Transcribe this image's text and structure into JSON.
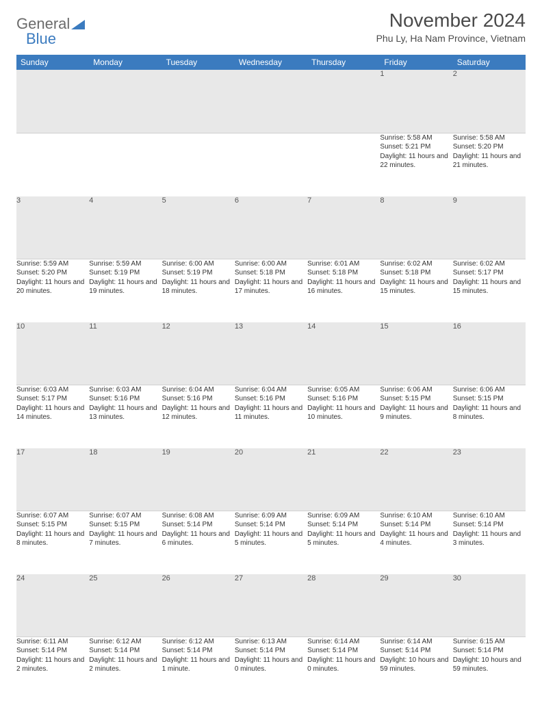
{
  "brand": {
    "general": "General",
    "blue": "Blue"
  },
  "title": "November 2024",
  "location": "Phu Ly, Ha Nam Province, Vietnam",
  "colors": {
    "header_bg": "#3b7bbf",
    "header_fg": "#ffffff",
    "daynum_bg": "#e8e8e8",
    "text": "#333333",
    "background": "#ffffff"
  },
  "typography": {
    "title_fontsize": 28,
    "location_fontsize": 14,
    "dayhead_fontsize": 12,
    "cell_fontsize": 10
  },
  "day_headers": [
    "Sunday",
    "Monday",
    "Tuesday",
    "Wednesday",
    "Thursday",
    "Friday",
    "Saturday"
  ],
  "weeks": [
    [
      {
        "num": "",
        "sunrise": "",
        "sunset": "",
        "daylight": ""
      },
      {
        "num": "",
        "sunrise": "",
        "sunset": "",
        "daylight": ""
      },
      {
        "num": "",
        "sunrise": "",
        "sunset": "",
        "daylight": ""
      },
      {
        "num": "",
        "sunrise": "",
        "sunset": "",
        "daylight": ""
      },
      {
        "num": "",
        "sunrise": "",
        "sunset": "",
        "daylight": ""
      },
      {
        "num": "1",
        "sunrise": "Sunrise: 5:58 AM",
        "sunset": "Sunset: 5:21 PM",
        "daylight": "Daylight: 11 hours and 22 minutes."
      },
      {
        "num": "2",
        "sunrise": "Sunrise: 5:58 AM",
        "sunset": "Sunset: 5:20 PM",
        "daylight": "Daylight: 11 hours and 21 minutes."
      }
    ],
    [
      {
        "num": "3",
        "sunrise": "Sunrise: 5:59 AM",
        "sunset": "Sunset: 5:20 PM",
        "daylight": "Daylight: 11 hours and 20 minutes."
      },
      {
        "num": "4",
        "sunrise": "Sunrise: 5:59 AM",
        "sunset": "Sunset: 5:19 PM",
        "daylight": "Daylight: 11 hours and 19 minutes."
      },
      {
        "num": "5",
        "sunrise": "Sunrise: 6:00 AM",
        "sunset": "Sunset: 5:19 PM",
        "daylight": "Daylight: 11 hours and 18 minutes."
      },
      {
        "num": "6",
        "sunrise": "Sunrise: 6:00 AM",
        "sunset": "Sunset: 5:18 PM",
        "daylight": "Daylight: 11 hours and 17 minutes."
      },
      {
        "num": "7",
        "sunrise": "Sunrise: 6:01 AM",
        "sunset": "Sunset: 5:18 PM",
        "daylight": "Daylight: 11 hours and 16 minutes."
      },
      {
        "num": "8",
        "sunrise": "Sunrise: 6:02 AM",
        "sunset": "Sunset: 5:18 PM",
        "daylight": "Daylight: 11 hours and 15 minutes."
      },
      {
        "num": "9",
        "sunrise": "Sunrise: 6:02 AM",
        "sunset": "Sunset: 5:17 PM",
        "daylight": "Daylight: 11 hours and 15 minutes."
      }
    ],
    [
      {
        "num": "10",
        "sunrise": "Sunrise: 6:03 AM",
        "sunset": "Sunset: 5:17 PM",
        "daylight": "Daylight: 11 hours and 14 minutes."
      },
      {
        "num": "11",
        "sunrise": "Sunrise: 6:03 AM",
        "sunset": "Sunset: 5:16 PM",
        "daylight": "Daylight: 11 hours and 13 minutes."
      },
      {
        "num": "12",
        "sunrise": "Sunrise: 6:04 AM",
        "sunset": "Sunset: 5:16 PM",
        "daylight": "Daylight: 11 hours and 12 minutes."
      },
      {
        "num": "13",
        "sunrise": "Sunrise: 6:04 AM",
        "sunset": "Sunset: 5:16 PM",
        "daylight": "Daylight: 11 hours and 11 minutes."
      },
      {
        "num": "14",
        "sunrise": "Sunrise: 6:05 AM",
        "sunset": "Sunset: 5:16 PM",
        "daylight": "Daylight: 11 hours and 10 minutes."
      },
      {
        "num": "15",
        "sunrise": "Sunrise: 6:06 AM",
        "sunset": "Sunset: 5:15 PM",
        "daylight": "Daylight: 11 hours and 9 minutes."
      },
      {
        "num": "16",
        "sunrise": "Sunrise: 6:06 AM",
        "sunset": "Sunset: 5:15 PM",
        "daylight": "Daylight: 11 hours and 8 minutes."
      }
    ],
    [
      {
        "num": "17",
        "sunrise": "Sunrise: 6:07 AM",
        "sunset": "Sunset: 5:15 PM",
        "daylight": "Daylight: 11 hours and 8 minutes."
      },
      {
        "num": "18",
        "sunrise": "Sunrise: 6:07 AM",
        "sunset": "Sunset: 5:15 PM",
        "daylight": "Daylight: 11 hours and 7 minutes."
      },
      {
        "num": "19",
        "sunrise": "Sunrise: 6:08 AM",
        "sunset": "Sunset: 5:14 PM",
        "daylight": "Daylight: 11 hours and 6 minutes."
      },
      {
        "num": "20",
        "sunrise": "Sunrise: 6:09 AM",
        "sunset": "Sunset: 5:14 PM",
        "daylight": "Daylight: 11 hours and 5 minutes."
      },
      {
        "num": "21",
        "sunrise": "Sunrise: 6:09 AM",
        "sunset": "Sunset: 5:14 PM",
        "daylight": "Daylight: 11 hours and 5 minutes."
      },
      {
        "num": "22",
        "sunrise": "Sunrise: 6:10 AM",
        "sunset": "Sunset: 5:14 PM",
        "daylight": "Daylight: 11 hours and 4 minutes."
      },
      {
        "num": "23",
        "sunrise": "Sunrise: 6:10 AM",
        "sunset": "Sunset: 5:14 PM",
        "daylight": "Daylight: 11 hours and 3 minutes."
      }
    ],
    [
      {
        "num": "24",
        "sunrise": "Sunrise: 6:11 AM",
        "sunset": "Sunset: 5:14 PM",
        "daylight": "Daylight: 11 hours and 2 minutes."
      },
      {
        "num": "25",
        "sunrise": "Sunrise: 6:12 AM",
        "sunset": "Sunset: 5:14 PM",
        "daylight": "Daylight: 11 hours and 2 minutes."
      },
      {
        "num": "26",
        "sunrise": "Sunrise: 6:12 AM",
        "sunset": "Sunset: 5:14 PM",
        "daylight": "Daylight: 11 hours and 1 minute."
      },
      {
        "num": "27",
        "sunrise": "Sunrise: 6:13 AM",
        "sunset": "Sunset: 5:14 PM",
        "daylight": "Daylight: 11 hours and 0 minutes."
      },
      {
        "num": "28",
        "sunrise": "Sunrise: 6:14 AM",
        "sunset": "Sunset: 5:14 PM",
        "daylight": "Daylight: 11 hours and 0 minutes."
      },
      {
        "num": "29",
        "sunrise": "Sunrise: 6:14 AM",
        "sunset": "Sunset: 5:14 PM",
        "daylight": "Daylight: 10 hours and 59 minutes."
      },
      {
        "num": "30",
        "sunrise": "Sunrise: 6:15 AM",
        "sunset": "Sunset: 5:14 PM",
        "daylight": "Daylight: 10 hours and 59 minutes."
      }
    ]
  ]
}
